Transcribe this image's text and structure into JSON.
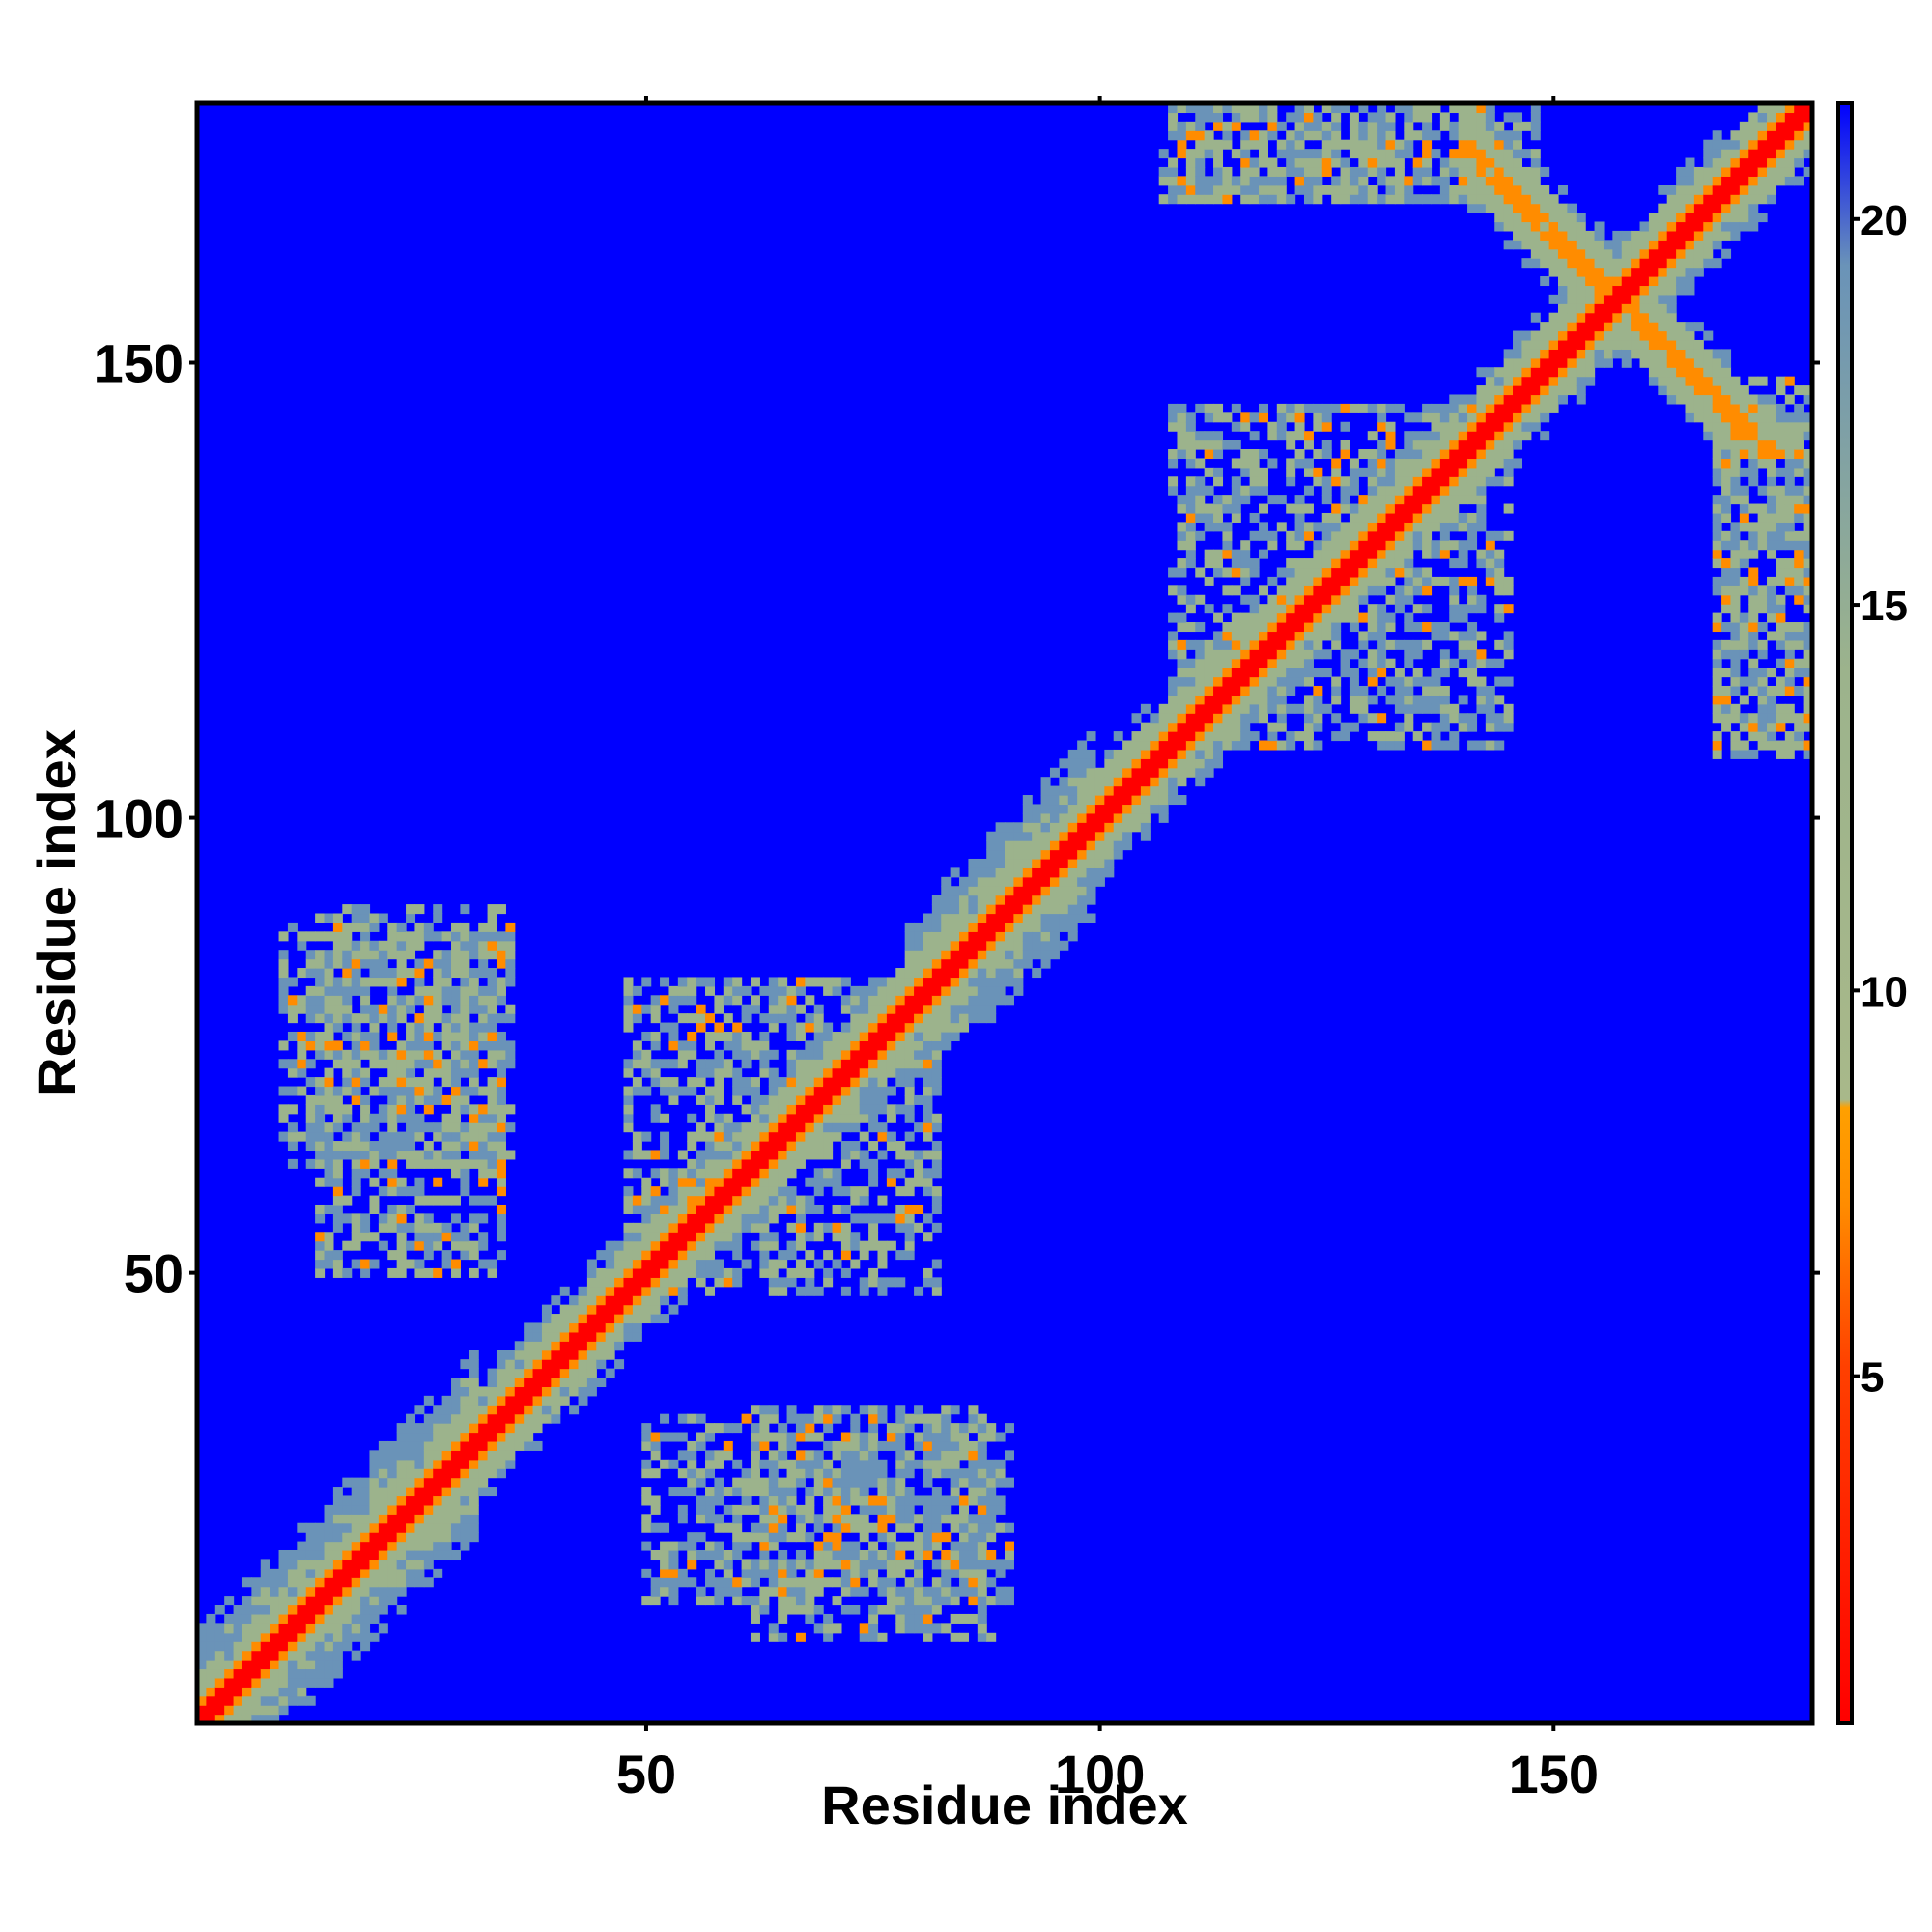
{
  "chart_data": {
    "type": "heatmap",
    "title": "",
    "xlabel": "Residue index",
    "ylabel": "Residue index",
    "xlim": [
      1,
      178
    ],
    "ylim": [
      1,
      178
    ],
    "x_ticks": [
      "50",
      "100",
      "150"
    ],
    "y_ticks": [
      "50",
      "100",
      "150"
    ],
    "x_tick_values": [
      50,
      100,
      150
    ],
    "y_tick_values": [
      50,
      100,
      150
    ],
    "colorbar": {
      "range": [
        0.5,
        21.5
      ],
      "ticks": [
        "5",
        "10",
        "15",
        "20"
      ],
      "tick_values": [
        5,
        10,
        15,
        20
      ],
      "colors": {
        "very_close": "#ff0000",
        "close": "#ff8c00",
        "mid": "#9cb38c",
        "far": "#6a93b8",
        "background": "#0000ff"
      }
    },
    "description_values": {
      "diagonal_distance": 1,
      "background_distance": 21
    },
    "features": [
      {
        "kind": "diagonal",
        "from": 1,
        "to": 178
      },
      {
        "kind": "anti_diagonal",
        "x_range": [
          140,
          178
        ],
        "y_range": [
          140,
          178
        ]
      },
      {
        "kind": "contact_region",
        "x_range": [
          10,
          35
        ],
        "y_range": [
          62,
          88
        ]
      },
      {
        "kind": "contact_region",
        "x_range": [
          48,
          80
        ],
        "y_range": [
          48,
          82
        ]
      },
      {
        "kind": "contact_region",
        "x_range": [
          50,
          90
        ],
        "y_range": [
          14,
          34
        ]
      },
      {
        "kind": "contact_region",
        "x_range": [
          108,
          145
        ],
        "y_range": [
          108,
          142
        ]
      },
      {
        "kind": "contact_region",
        "x_range": [
          107,
          148
        ],
        "y_range": [
          168,
          178
        ]
      },
      {
        "kind": "contact_region",
        "x_range": [
          168,
          178
        ],
        "y_range": [
          108,
          142
        ]
      }
    ]
  }
}
